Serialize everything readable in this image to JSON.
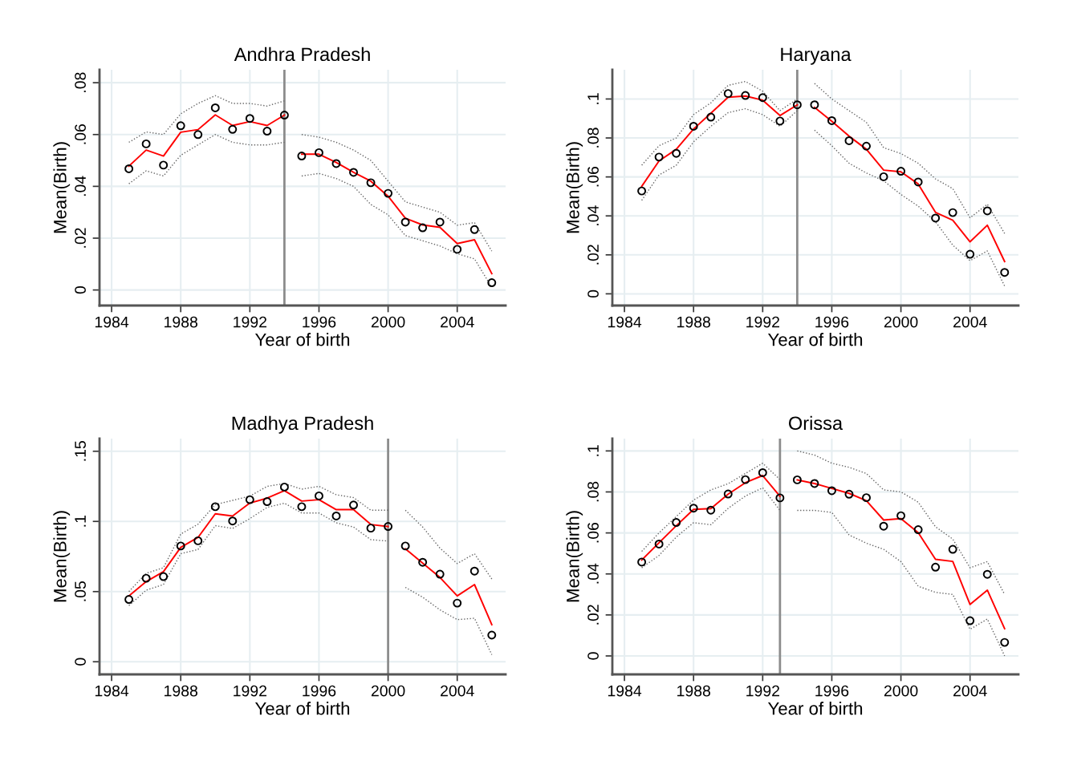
{
  "chart_data": [
    {
      "type": "line",
      "title": "Andhra Pradesh",
      "xlabel": "Year of birth",
      "ylabel": "Mean(Birth)",
      "xlim": [
        1983.3,
        2006.8
      ],
      "xticks": [
        1984,
        1988,
        1992,
        1996,
        2000,
        2004
      ],
      "ylim": [
        -0.006,
        0.085
      ],
      "yticks": [
        {
          "value": 0,
          "label": "0"
        },
        {
          "value": 0.02,
          "label": ".02"
        },
        {
          "value": 0.04,
          "label": ".04"
        },
        {
          "value": 0.06,
          "label": ".06"
        },
        {
          "value": 0.08,
          "label": ".08"
        }
      ],
      "grid": true,
      "ref_lines": [
        {
          "axis": "x",
          "value": 1994,
          "color": "#8c8c8c"
        }
      ],
      "series": [
        {
          "type": "scatter",
          "marker": "circle",
          "color": "#000000",
          "x": [
            1985,
            1986,
            1987,
            1988,
            1989,
            1990,
            1991,
            1992,
            1993,
            1994,
            1995,
            1996,
            1997,
            1998,
            1999,
            2000,
            2001,
            2002,
            2003,
            2004,
            2005,
            2006
          ],
          "values": [
            0.0468,
            0.0564,
            0.0482,
            0.0634,
            0.06,
            0.0703,
            0.062,
            0.0662,
            0.0613,
            0.0675,
            0.0517,
            0.053,
            0.0488,
            0.0454,
            0.0414,
            0.0373,
            0.0262,
            0.024,
            0.0262,
            0.0157,
            0.0233,
            0.0028
          ]
        },
        {
          "line_style": "solid",
          "color": "#ff0000",
          "x": [
            1985,
            1986,
            1987,
            1988,
            1989,
            1990,
            1991,
            1992,
            1993,
            1994
          ],
          "values": [
            0.0478,
            0.054,
            0.0517,
            0.0609,
            0.0619,
            0.0676,
            0.0635,
            0.065,
            0.0635,
            0.0675
          ]
        },
        {
          "line_style": "dotted",
          "color": "#666666",
          "x": [
            1985,
            1986,
            1987,
            1988,
            1989,
            1990,
            1991,
            1992,
            1993,
            1994
          ],
          "values": [
            0.041,
            0.046,
            0.044,
            0.052,
            0.056,
            0.06,
            0.057,
            0.056,
            0.056,
            0.057
          ]
        },
        {
          "line_style": "dotted",
          "color": "#666666",
          "x": [
            1985,
            1986,
            1987,
            1988,
            1989,
            1990,
            1991,
            1992,
            1993,
            1994
          ],
          "values": [
            0.057,
            0.061,
            0.06,
            0.068,
            0.072,
            0.075,
            0.072,
            0.072,
            0.071,
            0.073
          ]
        },
        {
          "line_style": "solid",
          "color": "#ff0000",
          "x": [
            1995,
            1996,
            1997,
            1998,
            1999,
            2000,
            2001,
            2002,
            2003,
            2004,
            2005,
            2006
          ],
          "values": [
            0.0524,
            0.0524,
            0.0492,
            0.0454,
            0.042,
            0.0362,
            0.0277,
            0.0251,
            0.0242,
            0.0179,
            0.0194,
            0.0063
          ]
        },
        {
          "line_style": "dotted",
          "color": "#666666",
          "x": [
            1995,
            1996,
            1997,
            1998,
            1999,
            2000,
            2001,
            2002,
            2003,
            2004,
            2005,
            2006
          ],
          "values": [
            0.044,
            0.045,
            0.043,
            0.04,
            0.033,
            0.029,
            0.021,
            0.019,
            0.017,
            0.014,
            0.012,
            0.001
          ]
        },
        {
          "line_style": "dotted",
          "color": "#666666",
          "x": [
            1995,
            1996,
            1997,
            1998,
            1999,
            2000,
            2001,
            2002,
            2003,
            2004,
            2005,
            2006
          ],
          "values": [
            0.06,
            0.059,
            0.057,
            0.054,
            0.05,
            0.042,
            0.034,
            0.032,
            0.03,
            0.025,
            0.026,
            0.015
          ]
        }
      ]
    },
    {
      "type": "line",
      "title": "Haryana",
      "xlabel": "Year of birth",
      "ylabel": "Mean(Birth)",
      "xlim": [
        1983.3,
        2006.8
      ],
      "xticks": [
        1984,
        1988,
        1992,
        1996,
        2000,
        2004
      ],
      "ylim": [
        -0.006,
        0.115
      ],
      "yticks": [
        {
          "value": 0,
          "label": "0"
        },
        {
          "value": 0.02,
          "label": ".02"
        },
        {
          "value": 0.04,
          "label": ".04"
        },
        {
          "value": 0.06,
          "label": ".06"
        },
        {
          "value": 0.08,
          "label": ".08"
        },
        {
          "value": 0.1,
          "label": ".1"
        }
      ],
      "grid": true,
      "ref_lines": [
        {
          "axis": "x",
          "value": 1994,
          "color": "#8c8c8c"
        }
      ],
      "series": [
        {
          "type": "scatter",
          "marker": "circle",
          "color": "#000000",
          "x": [
            1985,
            1986,
            1987,
            1988,
            1989,
            1990,
            1991,
            1992,
            1993,
            1994,
            1995,
            1996,
            1997,
            1998,
            1999,
            2000,
            2001,
            2002,
            2003,
            2004,
            2005,
            2006
          ],
          "values": [
            0.0528,
            0.0702,
            0.0721,
            0.086,
            0.0907,
            0.1028,
            0.1018,
            0.1007,
            0.0887,
            0.097,
            0.097,
            0.0889,
            0.0786,
            0.0758,
            0.0601,
            0.0629,
            0.0574,
            0.0389,
            0.0417,
            0.0203,
            0.0426,
            0.011
          ]
        },
        {
          "line_style": "solid",
          "color": "#ff0000",
          "x": [
            1985,
            1986,
            1987,
            1988,
            1989,
            1990,
            1991,
            1992,
            1993,
            1994
          ],
          "values": [
            0.0552,
            0.0682,
            0.0742,
            0.0846,
            0.0927,
            0.1009,
            0.1015,
            0.0994,
            0.0915,
            0.097
          ]
        },
        {
          "line_style": "dotted",
          "color": "#666666",
          "x": [
            1985,
            1986,
            1987,
            1988,
            1989,
            1990,
            1991,
            1992,
            1993,
            1994
          ],
          "values": [
            0.048,
            0.061,
            0.066,
            0.078,
            0.086,
            0.093,
            0.095,
            0.092,
            0.086,
            0.094
          ]
        },
        {
          "line_style": "dotted",
          "color": "#666666",
          "x": [
            1985,
            1986,
            1987,
            1988,
            1989,
            1990,
            1991,
            1992,
            1993,
            1994
          ],
          "values": [
            0.066,
            0.076,
            0.08,
            0.092,
            0.098,
            0.107,
            0.109,
            0.104,
            0.094,
            0.1
          ]
        },
        {
          "line_style": "solid",
          "color": "#ff0000",
          "x": [
            1995,
            1996,
            1997,
            1998,
            1999,
            2000,
            2001,
            2002,
            2003,
            2004,
            2005,
            2006
          ],
          "values": [
            0.0957,
            0.0886,
            0.0809,
            0.0742,
            0.0635,
            0.0626,
            0.0564,
            0.0418,
            0.0378,
            0.0267,
            0.0352,
            0.0166
          ]
        },
        {
          "line_style": "dotted",
          "color": "#666666",
          "x": [
            1995,
            1996,
            1997,
            1998,
            1999,
            2000,
            2001,
            2002,
            2003,
            2004,
            2005,
            2006
          ],
          "values": [
            0.084,
            0.076,
            0.067,
            0.062,
            0.058,
            0.051,
            0.045,
            0.037,
            0.025,
            0.017,
            0.022,
            0.004
          ]
        },
        {
          "line_style": "dotted",
          "color": "#666666",
          "x": [
            1995,
            1996,
            1997,
            1998,
            1999,
            2000,
            2001,
            2002,
            2003,
            2004,
            2005,
            2006
          ],
          "values": [
            0.108,
            0.1,
            0.094,
            0.088,
            0.075,
            0.072,
            0.067,
            0.059,
            0.054,
            0.039,
            0.046,
            0.031
          ]
        }
      ]
    },
    {
      "type": "line",
      "title": "Madhya Pradesh",
      "xlabel": "Year of birth",
      "ylabel": "Mean(Birth)",
      "xlim": [
        1983.3,
        2006.8
      ],
      "xticks": [
        1984,
        1988,
        1992,
        1996,
        2000,
        2004
      ],
      "ylim": [
        -0.009,
        0.159
      ],
      "yticks": [
        {
          "value": 0,
          "label": "0"
        },
        {
          "value": 0.05,
          "label": ".05"
        },
        {
          "value": 0.1,
          "label": ".1"
        },
        {
          "value": 0.15,
          "label": ".15"
        }
      ],
      "grid": true,
      "ref_lines": [
        {
          "axis": "x",
          "value": 2000,
          "color": "#8c8c8c"
        }
      ],
      "series": [
        {
          "type": "scatter",
          "marker": "circle",
          "color": "#000000",
          "x": [
            1985,
            1986,
            1987,
            1988,
            1989,
            1990,
            1991,
            1992,
            1993,
            1994,
            1995,
            1996,
            1997,
            1998,
            1999,
            2000,
            2001,
            2002,
            2003,
            2004,
            2005,
            2006
          ],
          "values": [
            0.0444,
            0.0595,
            0.0607,
            0.0825,
            0.0862,
            0.1105,
            0.1003,
            0.1155,
            0.1141,
            0.1245,
            0.1105,
            0.1182,
            0.1039,
            0.1117,
            0.0952,
            0.0964,
            0.0825,
            0.0709,
            0.0624,
            0.0418,
            0.0646,
            0.019
          ]
        },
        {
          "line_style": "solid",
          "color": "#ff0000",
          "x": [
            1985,
            1986,
            1987,
            1988,
            1989,
            1990,
            1991,
            1992,
            1993,
            1994,
            1995,
            1996,
            1997,
            1998,
            1999,
            2000
          ],
          "values": [
            0.0469,
            0.0571,
            0.0642,
            0.0815,
            0.0886,
            0.1054,
            0.1039,
            0.1131,
            0.1166,
            0.1219,
            0.1145,
            0.1155,
            0.1084,
            0.1084,
            0.0978,
            0.0964
          ]
        },
        {
          "line_style": "dotted",
          "color": "#666666",
          "x": [
            1985,
            1986,
            1987,
            1988,
            1989,
            1990,
            1991,
            1992,
            1993,
            1994,
            1995,
            1996,
            1997,
            1998,
            1999,
            2000
          ],
          "values": [
            0.04,
            0.051,
            0.055,
            0.077,
            0.08,
            0.097,
            0.095,
            0.102,
            0.11,
            0.113,
            0.106,
            0.106,
            0.099,
            0.096,
            0.087,
            0.086
          ]
        },
        {
          "line_style": "dotted",
          "color": "#666666",
          "x": [
            1985,
            1986,
            1987,
            1988,
            1989,
            1990,
            1991,
            1992,
            1993,
            1994,
            1995,
            1996,
            1997,
            1998,
            1999,
            2000
          ],
          "values": [
            0.05,
            0.063,
            0.067,
            0.091,
            0.098,
            0.112,
            0.115,
            0.118,
            0.125,
            0.127,
            0.123,
            0.125,
            0.119,
            0.117,
            0.108,
            0.108
          ]
        },
        {
          "line_style": "solid",
          "color": "#ff0000",
          "x": [
            2001,
            2002,
            2003,
            2004,
            2005,
            2006
          ],
          "values": [
            0.0805,
            0.0703,
            0.0601,
            0.0469,
            0.055,
            0.0265
          ]
        },
        {
          "line_style": "dotted",
          "color": "#666666",
          "x": [
            2001,
            2002,
            2003,
            2004,
            2005,
            2006
          ],
          "values": [
            0.053,
            0.046,
            0.037,
            0.03,
            0.031,
            0.005
          ]
        },
        {
          "line_style": "dotted",
          "color": "#666666",
          "x": [
            2001,
            2002,
            2003,
            2004,
            2005,
            2006
          ],
          "values": [
            0.108,
            0.096,
            0.081,
            0.07,
            0.077,
            0.059
          ]
        }
      ]
    },
    {
      "type": "line",
      "title": "Orissa",
      "xlabel": "Year of birth",
      "ylabel": "Mean(Birth)",
      "xlim": [
        1983.3,
        2006.8
      ],
      "xticks": [
        1984,
        1988,
        1992,
        1996,
        2000,
        2004
      ],
      "ylim": [
        -0.009,
        0.106
      ],
      "yticks": [
        {
          "value": 0,
          "label": "0"
        },
        {
          "value": 0.02,
          "label": ".02"
        },
        {
          "value": 0.04,
          "label": ".04"
        },
        {
          "value": 0.06,
          "label": ".06"
        },
        {
          "value": 0.08,
          "label": ".08"
        },
        {
          "value": 0.1,
          "label": ".1"
        }
      ],
      "grid": true,
      "ref_lines": [
        {
          "axis": "x",
          "value": 1993,
          "color": "#8c8c8c"
        }
      ],
      "series": [
        {
          "type": "scatter",
          "marker": "circle",
          "color": "#000000",
          "x": [
            1985,
            1986,
            1987,
            1988,
            1989,
            1990,
            1991,
            1992,
            1993,
            1994,
            1995,
            1996,
            1997,
            1998,
            1999,
            2000,
            2001,
            2002,
            2003,
            2004,
            2005,
            2006
          ],
          "values": [
            0.0458,
            0.0546,
            0.0651,
            0.0721,
            0.0711,
            0.079,
            0.086,
            0.0894,
            0.0771,
            0.0859,
            0.0841,
            0.0806,
            0.0789,
            0.0772,
            0.0633,
            0.0684,
            0.0616,
            0.0433,
            0.052,
            0.0172,
            0.0398,
            0.0066
          ]
        },
        {
          "line_style": "solid",
          "color": "#ff0000",
          "x": [
            1985,
            1986,
            1987,
            1988,
            1989,
            1990,
            1991,
            1992,
            1993
          ],
          "values": [
            0.0468,
            0.0552,
            0.0635,
            0.0715,
            0.0719,
            0.0789,
            0.0845,
            0.088,
            0.0779
          ]
        },
        {
          "line_style": "dotted",
          "color": "#666666",
          "x": [
            1985,
            1986,
            1987,
            1988,
            1989,
            1990,
            1991,
            1992,
            1993
          ],
          "values": [
            0.043,
            0.049,
            0.058,
            0.065,
            0.064,
            0.072,
            0.078,
            0.082,
            0.071
          ]
        },
        {
          "line_style": "dotted",
          "color": "#666666",
          "x": [
            1985,
            1986,
            1987,
            1988,
            1989,
            1990,
            1991,
            1992,
            1993
          ],
          "values": [
            0.051,
            0.06,
            0.068,
            0.076,
            0.081,
            0.084,
            0.089,
            0.094,
            0.086
          ]
        },
        {
          "line_style": "solid",
          "color": "#ff0000",
          "x": [
            1994,
            1995,
            1996,
            1997,
            1998,
            1999,
            2000,
            2001,
            2002,
            2003,
            2004,
            2005,
            2006
          ],
          "values": [
            0.0859,
            0.0841,
            0.0817,
            0.0793,
            0.0757,
            0.0663,
            0.067,
            0.0601,
            0.0471,
            0.0461,
            0.0251,
            0.0321,
            0.0133
          ]
        },
        {
          "line_style": "dotted",
          "color": "#666666",
          "x": [
            1994,
            1995,
            1996,
            1997,
            1998,
            1999,
            2000,
            2001,
            2002,
            2003,
            2004,
            2005,
            2006
          ],
          "values": [
            0.071,
            0.071,
            0.07,
            0.059,
            0.055,
            0.052,
            0.046,
            0.034,
            0.031,
            0.03,
            0.013,
            0.018,
            0.0
          ]
        },
        {
          "line_style": "dotted",
          "color": "#666666",
          "x": [
            1994,
            1995,
            1996,
            1997,
            1998,
            1999,
            2000,
            2001,
            2002,
            2003,
            2004,
            2005,
            2006
          ],
          "values": [
            0.1,
            0.098,
            0.094,
            0.092,
            0.089,
            0.081,
            0.08,
            0.075,
            0.063,
            0.057,
            0.043,
            0.046,
            0.03
          ]
        }
      ]
    }
  ]
}
